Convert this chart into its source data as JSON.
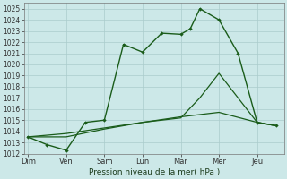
{
  "background_color": "#cce8e8",
  "grid_color": "#aacccc",
  "line_color": "#1a5c1a",
  "x_labels": [
    "Dim",
    "Ven",
    "Sam",
    "Lun",
    "Mar",
    "Mer",
    "Jeu"
  ],
  "ylim": [
    1012,
    1025.5
  ],
  "yticks": [
    1012,
    1013,
    1014,
    1015,
    1016,
    1017,
    1018,
    1019,
    1020,
    1021,
    1022,
    1023,
    1024,
    1025
  ],
  "xlabel": "Pression niveau de la mer( hPa )",
  "line1_x": [
    0,
    0.5,
    1.0,
    1.5,
    2.0,
    2.5,
    3.0,
    3.5,
    4.0,
    4.25,
    4.5,
    5.0,
    5.5,
    6.0,
    6.5
  ],
  "line1_y": [
    1013.5,
    1012.8,
    1012.3,
    1014.8,
    1015.0,
    1021.8,
    1021.1,
    1022.8,
    1022.7,
    1023.2,
    1025.0,
    1024.0,
    1021.0,
    1014.8,
    1014.5
  ],
  "line2_x": [
    0,
    1.0,
    2.0,
    3.0,
    4.0,
    4.5,
    5.0,
    5.5,
    6.0,
    6.5
  ],
  "line2_y": [
    1013.5,
    1013.5,
    1014.2,
    1014.8,
    1015.2,
    1017.0,
    1019.2,
    1017.0,
    1014.8,
    1014.5
  ],
  "line3_x": [
    0,
    1.0,
    2.0,
    3.0,
    4.0,
    5.0,
    6.0,
    6.5
  ],
  "line3_y": [
    1013.5,
    1013.8,
    1014.3,
    1014.8,
    1015.3,
    1015.7,
    1014.8,
    1014.5
  ],
  "figwidth": 3.2,
  "figheight": 2.0,
  "dpi": 100
}
